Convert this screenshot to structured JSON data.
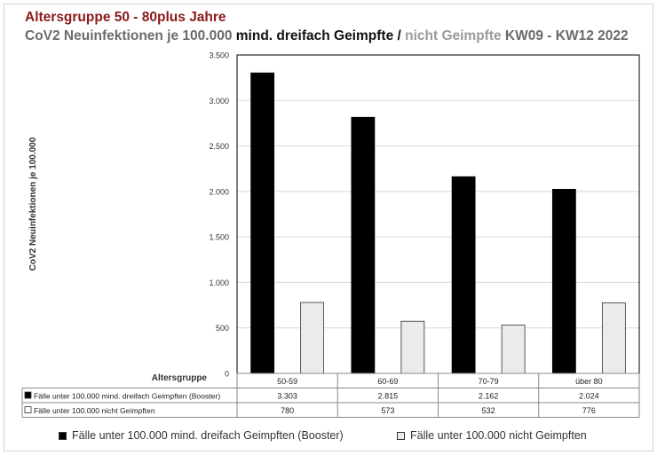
{
  "title": {
    "line1": "Altersgruppe 50 - 80plus Jahre",
    "line2_part1": "CoV2 Neuinfektionen je 100.000 ",
    "line2_part2": "mind. dreifach Geimpfte",
    "line2_part3": " / ",
    "line2_part4": "nicht Geimpfte",
    "line2_part5": " KW09 - KW12 2022"
  },
  "colors": {
    "boosted": "#000000",
    "unvaccinated": "#ebebeb",
    "title_red": "#8b1a1a",
    "grid": "#d9d9d9"
  },
  "chart_data": {
    "type": "bar",
    "ylabel": "CoV2 Neuinfektionen je 100.000",
    "xlabel": "Altersgruppe",
    "categories": [
      "50-59",
      "60-69",
      "70-79",
      "über 80"
    ],
    "series": [
      {
        "name": "Fälle unter 100.000 mind. dreifach Geimpften (Booster)",
        "values": [
          3303,
          2815,
          2162,
          2024
        ],
        "labels": [
          "3.303",
          "2.815",
          "2.162",
          "2.024"
        ]
      },
      {
        "name": "Fälle unter 100.000 nicht Geimpften",
        "values": [
          780,
          573,
          532,
          776
        ],
        "labels": [
          "780",
          "573",
          "532",
          "776"
        ]
      }
    ],
    "ylim": [
      0,
      3500
    ],
    "yticks": [
      0,
      500,
      1000,
      1500,
      2000,
      2500,
      3000,
      3500
    ],
    "ytick_labels": [
      "0",
      "500",
      "1.000",
      "1.500",
      "2.000",
      "2.500",
      "3.000",
      "3.500"
    ],
    "grid": true,
    "legend_position": "bottom",
    "data_table": true
  }
}
